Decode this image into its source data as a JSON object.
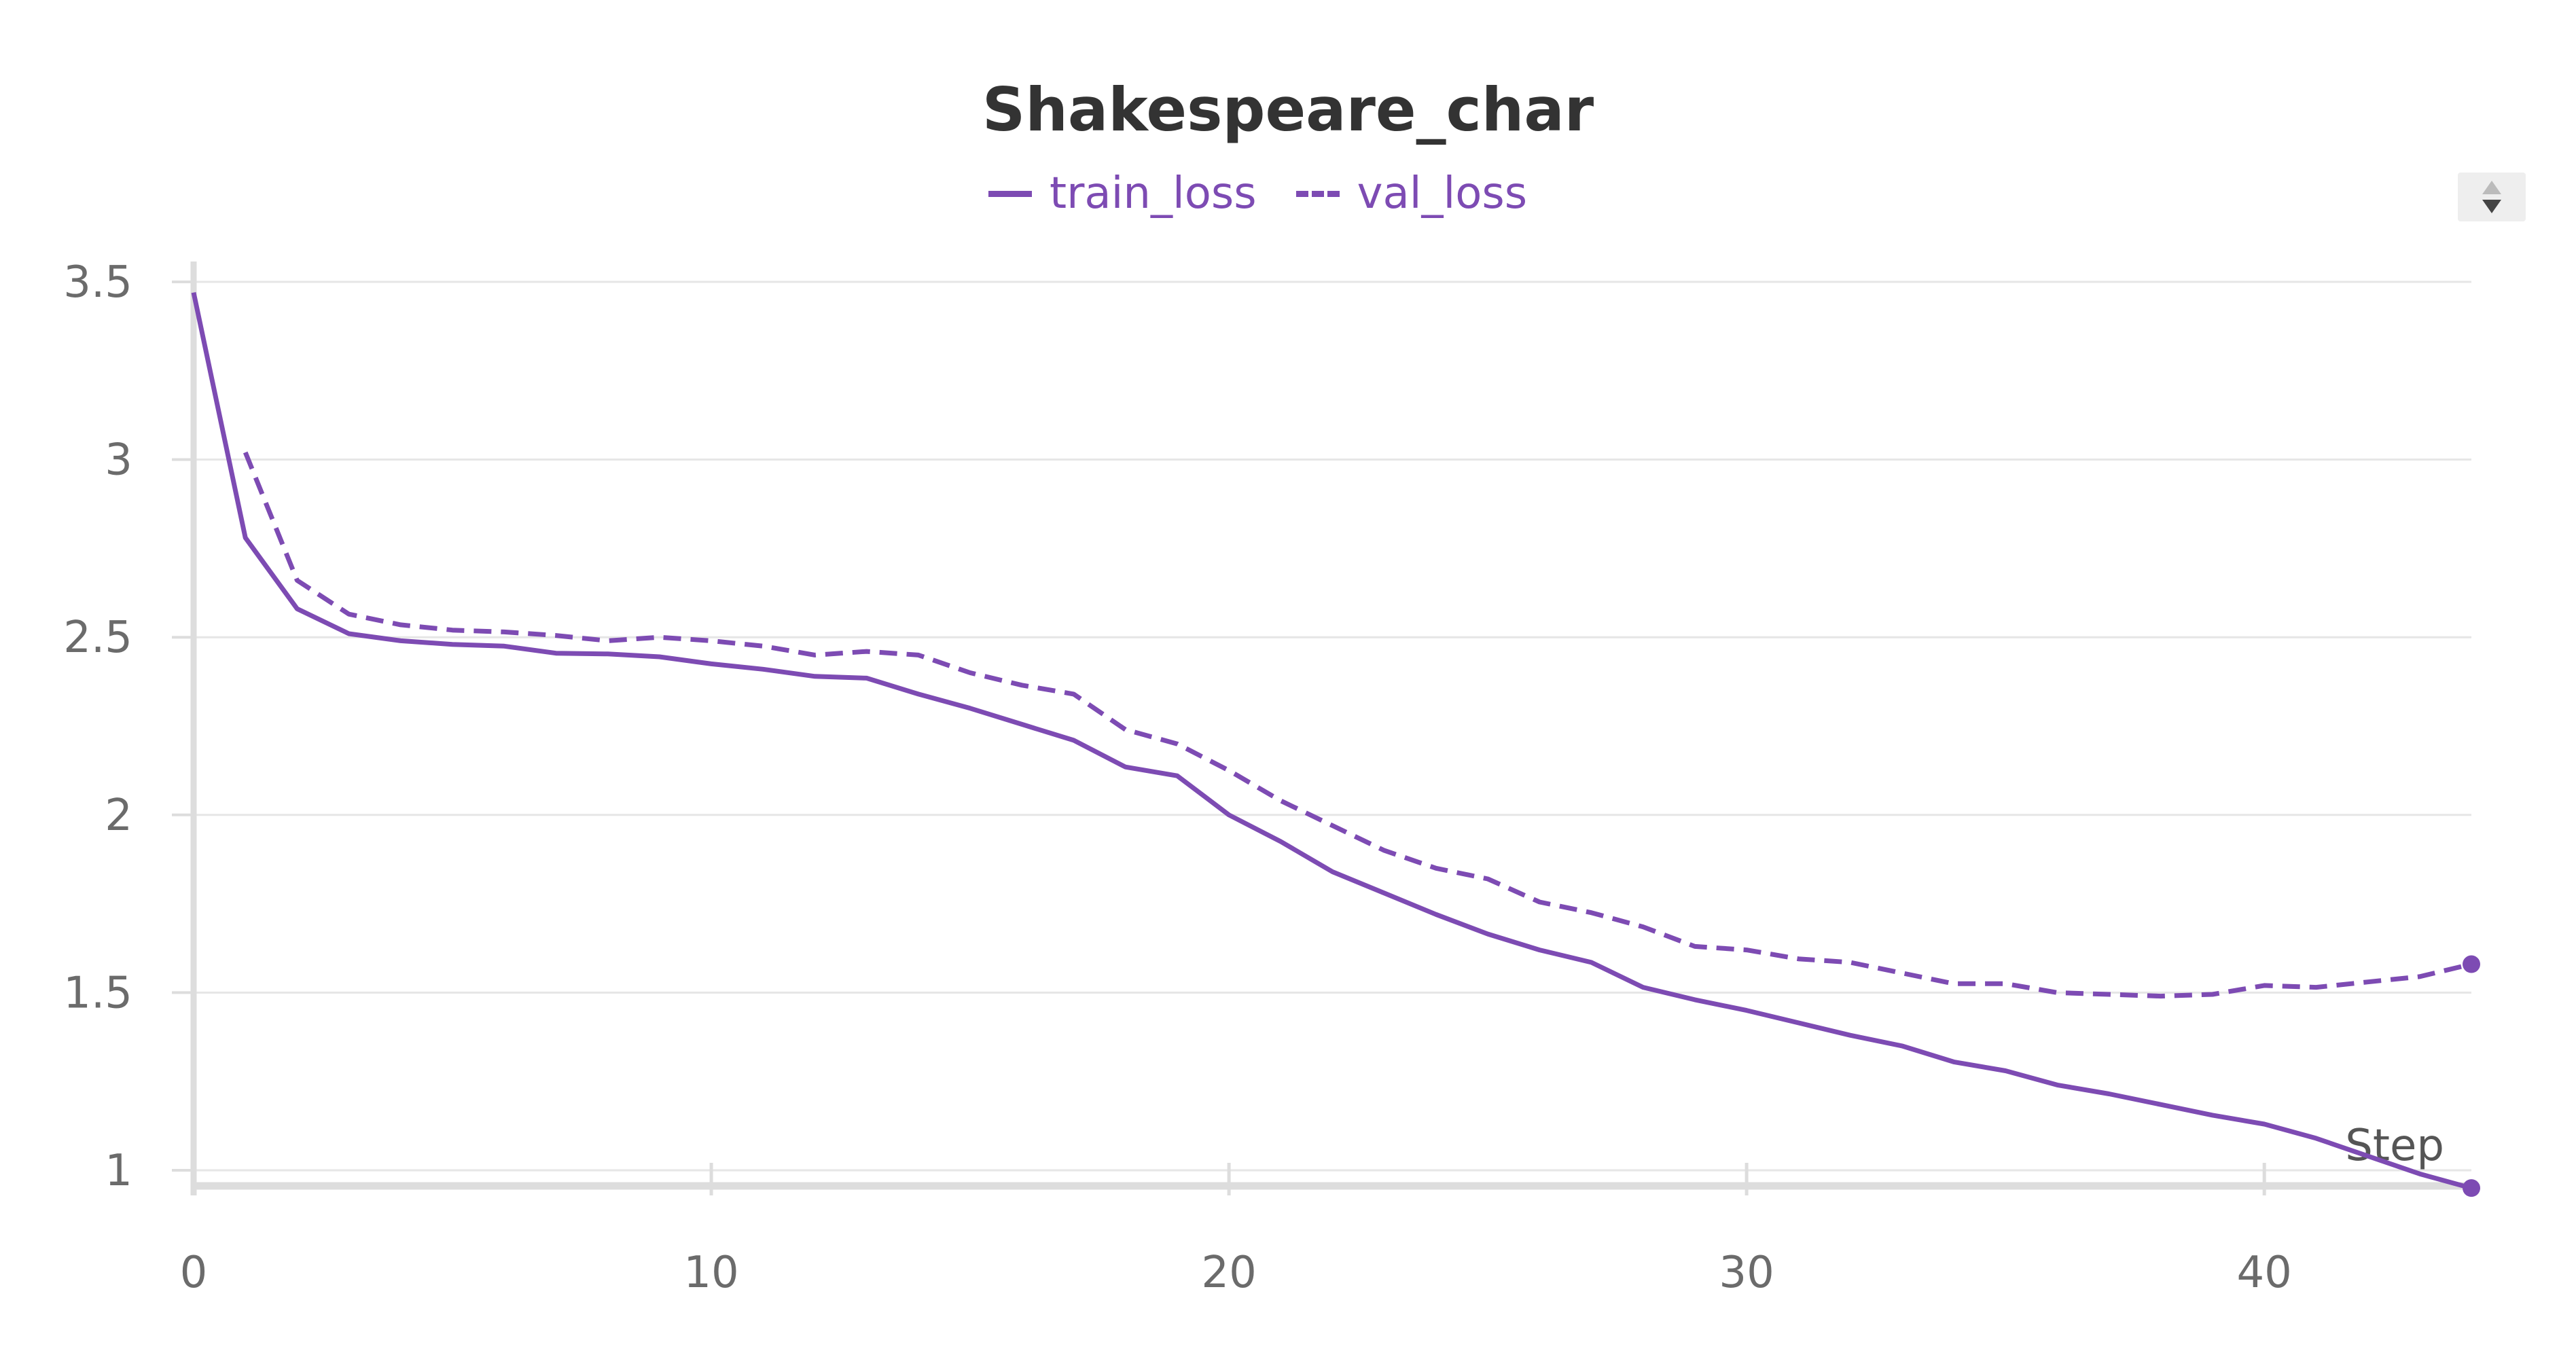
{
  "chart_data": {
    "type": "line",
    "title": "Shakespeare_char",
    "xlabel": "Step",
    "ylabel": "",
    "xlim": [
      0,
      44
    ],
    "ylim": [
      0.95,
      3.55
    ],
    "x_ticks": [
      0,
      10,
      20,
      30,
      40
    ],
    "y_ticks": [
      1,
      1.5,
      2,
      2.5,
      3,
      3.5
    ],
    "y_tick_labels": [
      "1",
      "1.5",
      "2",
      "2.5",
      "3",
      "3.5"
    ],
    "grid": true,
    "legend_position": "top-center",
    "colors": {
      "series": "#7d4bb3",
      "grid": "#e6e6e6",
      "axis": "#dddddd"
    },
    "series": [
      {
        "name": "train_loss",
        "style": "solid",
        "x": [
          0,
          1,
          2,
          3,
          4,
          5,
          6,
          7,
          8,
          9,
          10,
          11,
          12,
          13,
          14,
          15,
          16,
          17,
          18,
          19,
          20,
          21,
          22,
          23,
          24,
          25,
          26,
          27,
          28,
          29,
          30,
          31,
          32,
          33,
          34,
          35,
          36,
          37,
          38,
          39,
          40,
          41,
          42,
          43,
          44
        ],
        "values": [
          3.47,
          2.78,
          2.58,
          2.51,
          2.49,
          2.48,
          2.475,
          2.455,
          2.453,
          2.445,
          2.425,
          2.41,
          2.39,
          2.385,
          2.34,
          2.3,
          2.255,
          2.21,
          2.135,
          2.11,
          2.0,
          1.925,
          1.84,
          1.78,
          1.72,
          1.665,
          1.62,
          1.585,
          1.515,
          1.48,
          1.45,
          1.415,
          1.38,
          1.35,
          1.305,
          1.28,
          1.24,
          1.215,
          1.185,
          1.155,
          1.13,
          1.09,
          1.04,
          0.99,
          0.95
        ]
      },
      {
        "name": "val_loss",
        "style": "dashed",
        "x": [
          1,
          2,
          3,
          4,
          5,
          6,
          7,
          8,
          9,
          10,
          11,
          12,
          13,
          14,
          15,
          16,
          17,
          18,
          19,
          20,
          21,
          22,
          23,
          24,
          25,
          26,
          27,
          28,
          29,
          30,
          31,
          32,
          33,
          34,
          35,
          36,
          37,
          38,
          39,
          40,
          41,
          42,
          43,
          44
        ],
        "values": [
          3.02,
          2.66,
          2.565,
          2.535,
          2.52,
          2.515,
          2.505,
          2.49,
          2.5,
          2.49,
          2.475,
          2.45,
          2.46,
          2.45,
          2.4,
          2.365,
          2.34,
          2.24,
          2.2,
          2.125,
          2.04,
          1.97,
          1.9,
          1.85,
          1.82,
          1.755,
          1.725,
          1.685,
          1.63,
          1.62,
          1.595,
          1.585,
          1.555,
          1.525,
          1.525,
          1.5,
          1.495,
          1.49,
          1.495,
          1.52,
          1.515,
          1.53,
          1.545,
          1.58
        ]
      }
    ]
  }
}
